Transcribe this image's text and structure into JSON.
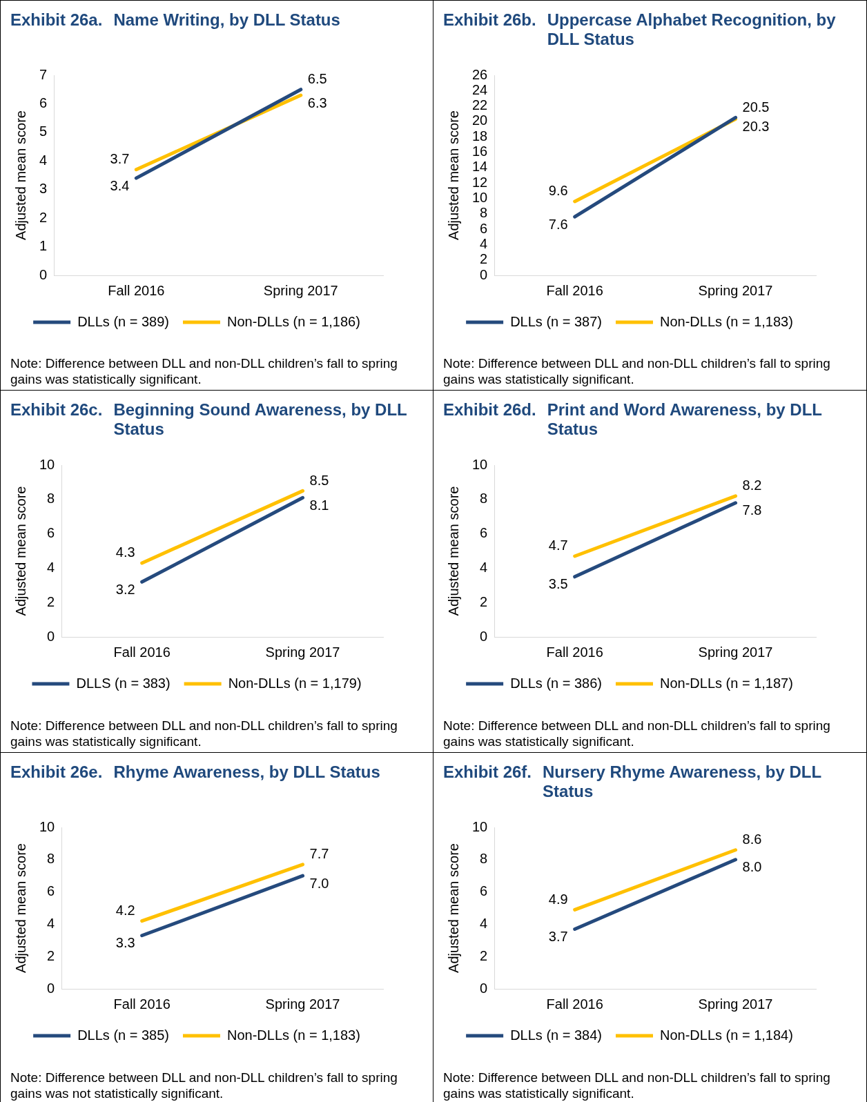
{
  "chart_data": [
    {
      "type": "line",
      "title": "Exhibit 26a.",
      "subtitle": "Name Writing, by DLL Status",
      "ylabel": "Adjusted mean score",
      "categories": [
        "Fall 2016",
        "Spring 2017"
      ],
      "series": [
        {
          "name": "DLLs (n = 389)",
          "color": "#254a7d",
          "values": [
            3.4,
            6.5
          ]
        },
        {
          "name": "Non-DLLs (n = 1,186)",
          "color": "#ffc000",
          "values": [
            3.7,
            6.3
          ]
        }
      ],
      "ylim": [
        0,
        7
      ],
      "yticks": [
        0,
        1,
        2,
        3,
        4,
        5,
        6,
        7
      ],
      "grid": false,
      "legend": "bottom",
      "marker": "none",
      "line_style": "solid",
      "data_labels": true,
      "annotations": [
        "Note: Difference between DLL and non-DLL children’s fall to spring gains was statistically significant."
      ]
    },
    {
      "type": "line",
      "title": "Exhibit 26b.",
      "subtitle": "Uppercase Alphabet Recognition, by DLL Status",
      "ylabel": "Adjusted mean score",
      "categories": [
        "Fall 2016",
        "Spring 2017"
      ],
      "series": [
        {
          "name": "DLLs (n = 387)",
          "color": "#254a7d",
          "values": [
            7.6,
            20.5
          ]
        },
        {
          "name": "Non-DLLs (n = 1,183)",
          "color": "#ffc000",
          "values": [
            9.6,
            20.3
          ]
        }
      ],
      "ylim": [
        0,
        26
      ],
      "yticks": [
        0,
        2,
        4,
        6,
        8,
        10,
        12,
        14,
        16,
        18,
        20,
        22,
        24,
        26
      ],
      "grid": false,
      "legend": "bottom",
      "marker": "none",
      "line_style": "solid",
      "data_labels": true,
      "annotations": [
        "Note: Difference between DLL and non-DLL children’s fall to spring gains was statistically significant."
      ]
    },
    {
      "type": "line",
      "title": "Exhibit 26c.",
      "subtitle": "Beginning Sound Awareness, by DLL Status",
      "ylabel": "Adjusted mean score",
      "categories": [
        "Fall 2016",
        "Spring 2017"
      ],
      "series": [
        {
          "name": "DLLS (n = 383)",
          "color": "#254a7d",
          "values": [
            3.2,
            8.1
          ]
        },
        {
          "name": "Non-DLLs (n = 1,179)",
          "color": "#ffc000",
          "values": [
            4.3,
            8.5
          ]
        }
      ],
      "ylim": [
        0,
        10
      ],
      "yticks": [
        0,
        2,
        4,
        6,
        8,
        10
      ],
      "grid": false,
      "legend": "bottom",
      "marker": "none",
      "line_style": "solid",
      "data_labels": true,
      "annotations": [
        "Note: Difference between DLL and non-DLL children’s fall to spring gains was statistically significant."
      ]
    },
    {
      "type": "line",
      "title": "Exhibit 26d.",
      "subtitle": "Print and Word Awareness, by DLL Status",
      "ylabel": "Adjusted mean score",
      "categories": [
        "Fall 2016",
        "Spring 2017"
      ],
      "series": [
        {
          "name": "DLLs (n = 386)",
          "color": "#254a7d",
          "values": [
            3.5,
            7.8
          ]
        },
        {
          "name": "Non-DLLs (n = 1,187)",
          "color": "#ffc000",
          "values": [
            4.7,
            8.2
          ]
        }
      ],
      "ylim": [
        0,
        10
      ],
      "yticks": [
        0,
        2,
        4,
        6,
        8,
        10
      ],
      "grid": false,
      "legend": "bottom",
      "marker": "none",
      "line_style": "solid",
      "data_labels": true,
      "annotations": [
        "Note: Difference between DLL and non-DLL children’s fall to spring gains was statistically significant."
      ]
    },
    {
      "type": "line",
      "title": "Exhibit 26e.",
      "subtitle": "Rhyme Awareness, by DLL Status",
      "ylabel": "Adjusted mean score",
      "categories": [
        "Fall 2016",
        "Spring 2017"
      ],
      "series": [
        {
          "name": "DLLs (n = 385)",
          "color": "#254a7d",
          "values": [
            3.3,
            7.0
          ],
          "value_labels": [
            "3.3",
            "7.0"
          ]
        },
        {
          "name": "Non-DLLs (n = 1,183)",
          "color": "#ffc000",
          "values": [
            4.2,
            7.7
          ],
          "value_labels": [
            "4.2",
            "7.7"
          ]
        }
      ],
      "ylim": [
        0,
        10
      ],
      "yticks": [
        0,
        2,
        4,
        6,
        8,
        10
      ],
      "grid": false,
      "legend": "bottom",
      "marker": "none",
      "line_style": "solid",
      "annotations": [
        "Note: Difference between DLL and non-DLL children’s fall to spring gains was not statistically significant."
      ]
    },
    {
      "type": "line",
      "title": "Exhibit 26f.",
      "subtitle": "Nursery Rhyme Awareness, by DLL Status",
      "ylabel": "Adjusted mean score",
      "categories": [
        "Fall 2016",
        "Spring 2017"
      ],
      "series": [
        {
          "name": "DLLs (n = 384)",
          "color": "#254a7d",
          "values": [
            3.7,
            8.0
          ],
          "value_labels": [
            "3.7",
            "8.0"
          ]
        },
        {
          "name": "Non-DLLs (n = 1,184)",
          "color": "#ffc000",
          "values": [
            4.9,
            8.6
          ],
          "value_labels": [
            "4.9",
            "8.6"
          ]
        }
      ],
      "ylim": [
        0,
        10
      ],
      "yticks": [
        0,
        2,
        4,
        6,
        8,
        10
      ],
      "grid": false,
      "legend": "bottom",
      "marker": "none",
      "line_style": "solid",
      "annotations": [
        "Note: Difference between DLL and non-DLL children’s fall to spring gains was statistically significant."
      ]
    }
  ]
}
